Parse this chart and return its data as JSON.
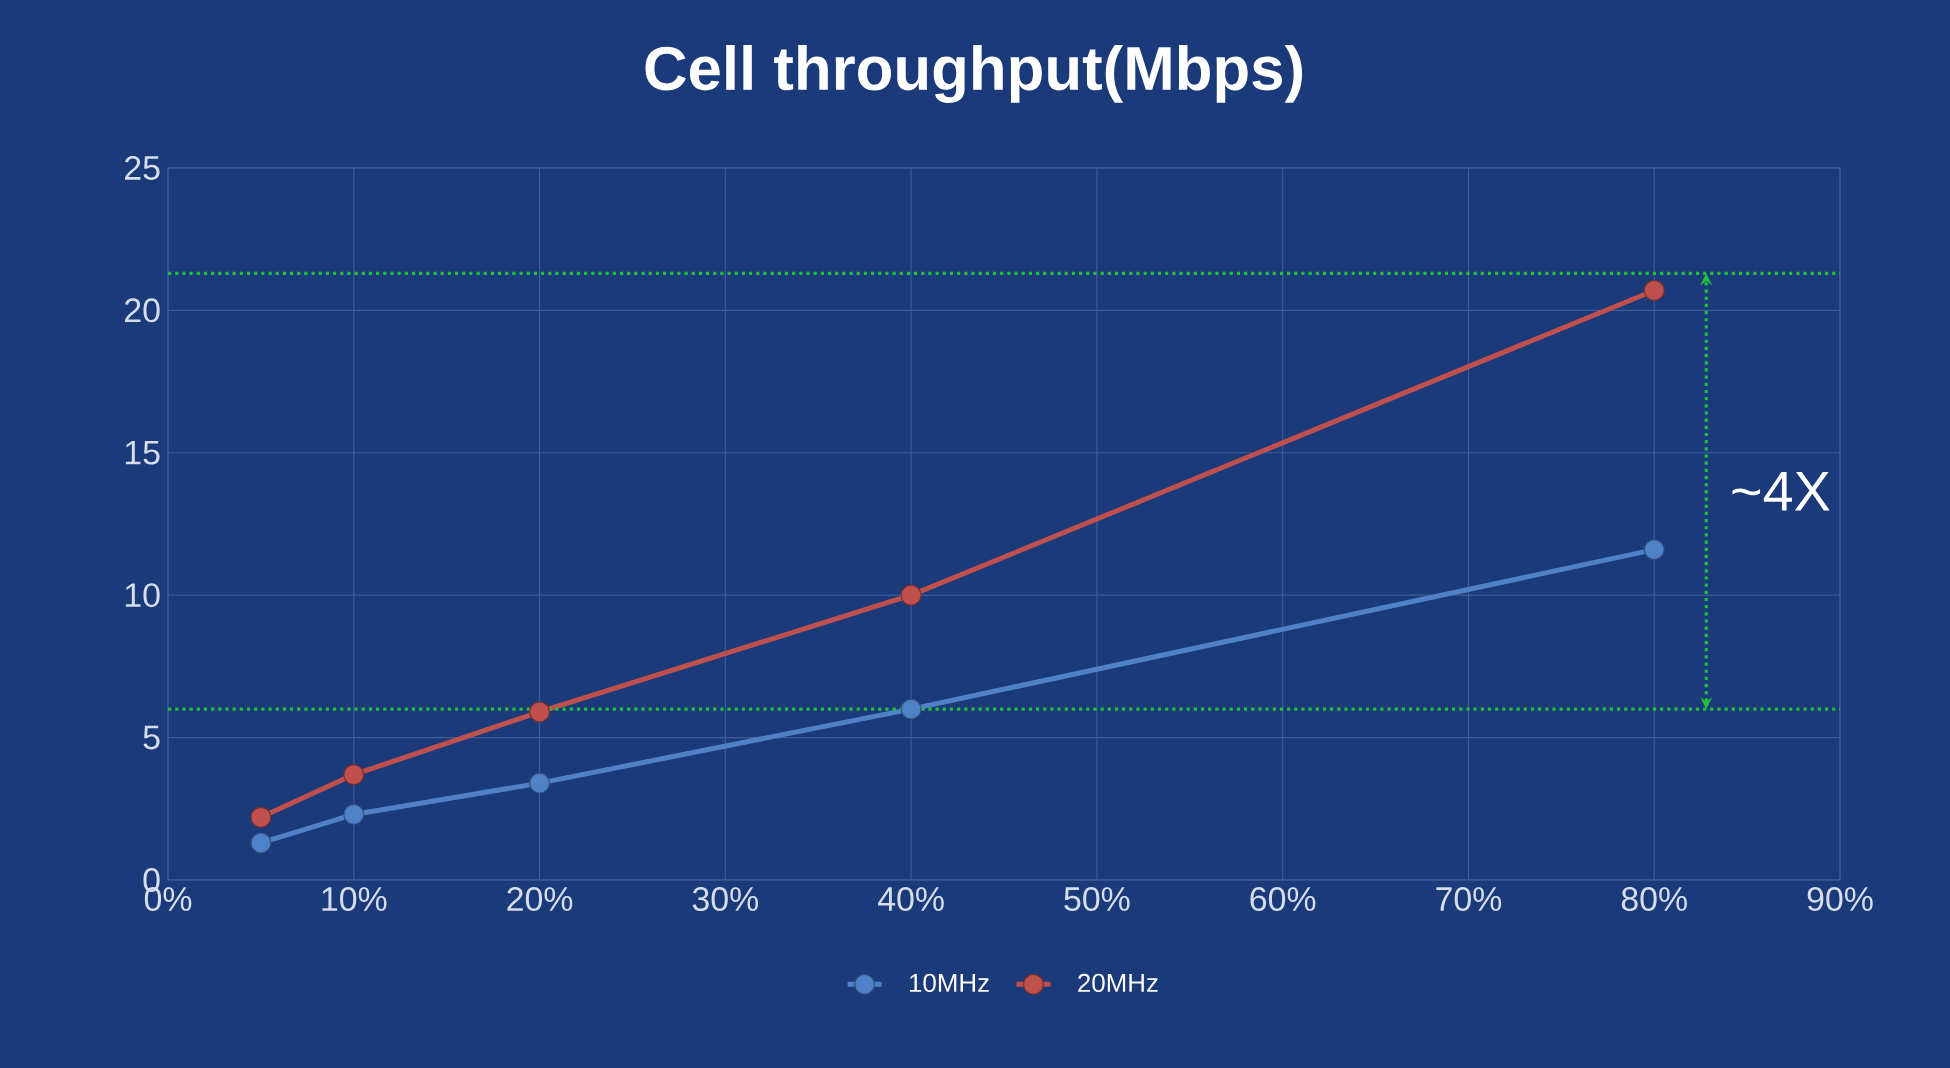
{
  "chart_data": {
    "type": "line",
    "title": "Cell throughput(Mbps)",
    "x": [
      5,
      10,
      20,
      40,
      80
    ],
    "series": [
      {
        "name": "10MHz",
        "color": "#4f81c8",
        "values": [
          1.3,
          2.3,
          3.4,
          6.0,
          11.6
        ]
      },
      {
        "name": "20MHz",
        "color": "#c0504d",
        "values": [
          2.2,
          3.7,
          5.9,
          10.0,
          20.7
        ]
      }
    ],
    "xlim": [
      0,
      90
    ],
    "xticks": [
      {
        "value": 0,
        "label": "0%"
      },
      {
        "value": 10,
        "label": "10%"
      },
      {
        "value": 20,
        "label": "20%"
      },
      {
        "value": 30,
        "label": "30%"
      },
      {
        "value": 40,
        "label": "40%"
      },
      {
        "value": 50,
        "label": "50%"
      },
      {
        "value": 60,
        "label": "60%"
      },
      {
        "value": 70,
        "label": "70%"
      },
      {
        "value": 80,
        "label": "80%"
      },
      {
        "value": 90,
        "label": "90%"
      }
    ],
    "ylim": [
      0,
      25
    ],
    "yticks": [
      0,
      5,
      10,
      15,
      20,
      25
    ],
    "grid": true,
    "legend": "bottom",
    "marker": "circle",
    "line_style": "solid",
    "ref_lines": [
      {
        "axis": "y",
        "value": 6,
        "color": "#22c03c",
        "line_style": "dotted"
      },
      {
        "axis": "y",
        "value": 21.3,
        "color": "#22c03c",
        "line_style": "dotted"
      }
    ],
    "annotations": [
      "~4X"
    ]
  }
}
